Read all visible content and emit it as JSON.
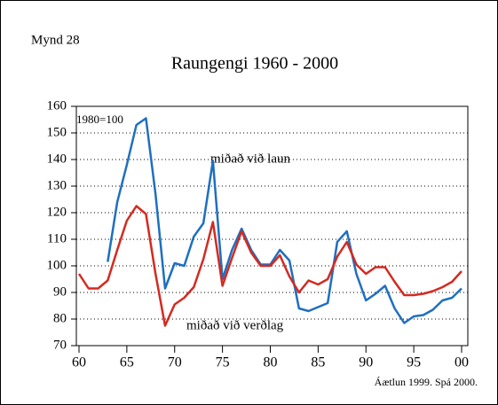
{
  "chart_data": {
    "type": "line",
    "figure_label": "Mynd 28",
    "title": "Raungengi 1960 - 2000",
    "ylabel": "1980=100",
    "source": "Áætlun 1999. Spá 2000.",
    "x": [
      1960,
      1961,
      1962,
      1963,
      1964,
      1965,
      1966,
      1967,
      1968,
      1969,
      1970,
      1971,
      1972,
      1973,
      1974,
      1975,
      1976,
      1977,
      1978,
      1979,
      1980,
      1981,
      1982,
      1983,
      1984,
      1985,
      1986,
      1987,
      1988,
      1989,
      1990,
      1991,
      1992,
      1993,
      1994,
      1995,
      1996,
      1997,
      1998,
      1999,
      2000
    ],
    "series": [
      {
        "name": "miðað við laun",
        "color": "#1f6fc0",
        "values": [
          null,
          null,
          null,
          101.5,
          124,
          138,
          153,
          155.5,
          127,
          91.5,
          101,
          100,
          111,
          116,
          139.5,
          95,
          106,
          114,
          106,
          100.5,
          100.5,
          106,
          102,
          84,
          83,
          84.5,
          86,
          109,
          113,
          97,
          87,
          89.5,
          92.5,
          84,
          78.5,
          81,
          81.5,
          83.5,
          87,
          88,
          91.5
        ]
      },
      {
        "name": "miðað við verðlag",
        "color": "#d42a20",
        "values": [
          97,
          91.5,
          91.5,
          94.5,
          106,
          117,
          122.5,
          119.5,
          97,
          77.5,
          85.5,
          88,
          92,
          102.5,
          116.5,
          92.5,
          103,
          113,
          105,
          100,
          100,
          104,
          96,
          90,
          94.5,
          93,
          95,
          103.5,
          109,
          100.5,
          97,
          99.5,
          99.5,
          94,
          89,
          89,
          89.5,
          90.5,
          92,
          94,
          98
        ]
      }
    ],
    "xlim": [
      1960,
      2000
    ],
    "xticks": [
      {
        "value": 1960,
        "label": "60"
      },
      {
        "value": 1965,
        "label": "65"
      },
      {
        "value": 1970,
        "label": "70"
      },
      {
        "value": 1975,
        "label": "75"
      },
      {
        "value": 1980,
        "label": "80"
      },
      {
        "value": 1985,
        "label": "85"
      },
      {
        "value": 1990,
        "label": "90"
      },
      {
        "value": 1995,
        "label": "95"
      },
      {
        "value": 2000,
        "label": "00"
      }
    ],
    "ylim": [
      70,
      160
    ],
    "yticks": [
      70,
      80,
      90,
      100,
      110,
      120,
      130,
      140,
      150,
      160
    ],
    "grid": true
  }
}
